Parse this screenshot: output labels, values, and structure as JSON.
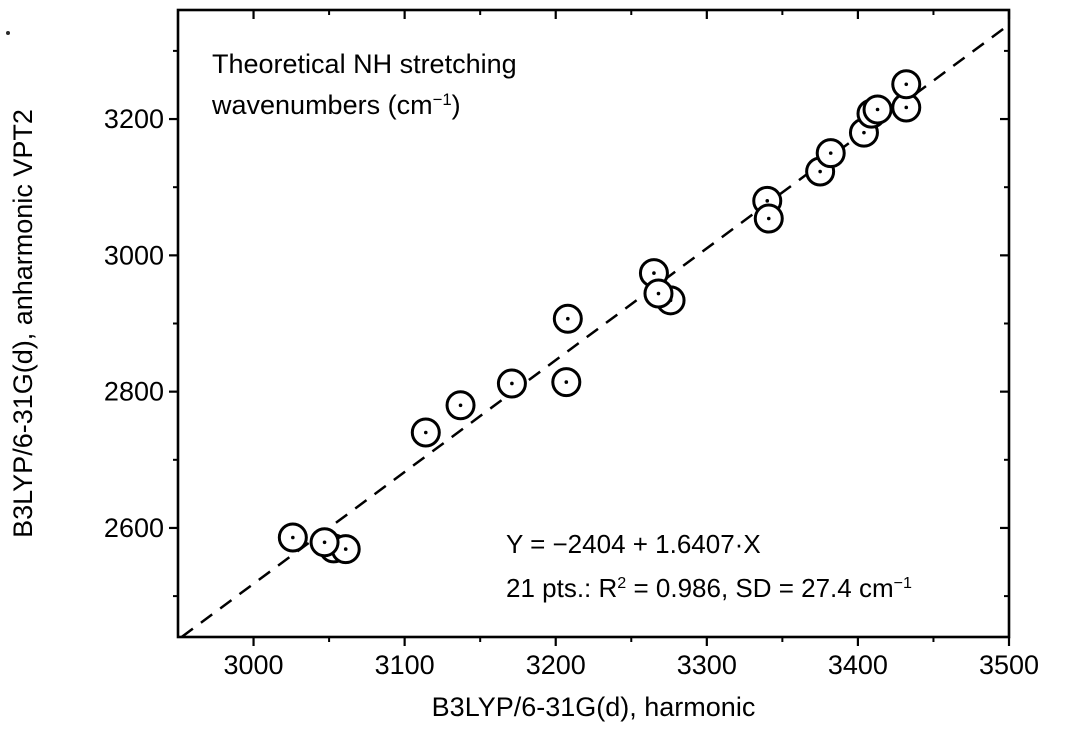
{
  "figure": {
    "background": "#ffffff",
    "ink_color": "#000000",
    "annotation_title": {
      "line1": "Theoretical NH stretching",
      "line2_pre": "wavenumbers (cm",
      "line2_sup": "−1",
      "line2_post": ")"
    },
    "fit_annotation": {
      "line1": "Y = −2404 + 1.6407·X",
      "line2_a": "21 pts.: R",
      "line2_a_sup": "2",
      "line2_b": " = 0.986, SD = 27.4 cm",
      "line2_b_sup": "−1"
    }
  },
  "chart_data": {
    "type": "scatter",
    "title": "Theoretical NH stretching wavenumbers (cm⁻¹)",
    "xlabel": "B3LYP/6-31G(d), harmonic",
    "ylabel": "B3LYP/6-31G(d), anharmonic VPT2",
    "xlim": [
      2950,
      3500
    ],
    "ylim": [
      2440,
      3360
    ],
    "x_major_ticks": [
      3000,
      3100,
      3200,
      3300,
      3400,
      3500
    ],
    "x_minor_ticks": [
      3050,
      3150,
      3250,
      3350,
      3450
    ],
    "y_major_ticks": [
      2600,
      2800,
      3000,
      3200
    ],
    "y_minor_ticks": [
      2500,
      2700,
      2900,
      3100,
      3300
    ],
    "grid": false,
    "legend": "none",
    "marker": {
      "shape": "open-circle-with-center-dot",
      "stroke": "#000000",
      "fill": "#ffffff"
    },
    "points": [
      [
        3026,
        2586
      ],
      [
        3053,
        2570
      ],
      [
        3061,
        2569
      ],
      [
        3047,
        2579
      ],
      [
        3114,
        2740
      ],
      [
        3137,
        2780
      ],
      [
        3171,
        2812
      ],
      [
        3207,
        2814
      ],
      [
        3208,
        2907
      ],
      [
        3265,
        2974
      ],
      [
        3276,
        2934
      ],
      [
        3268,
        2944
      ],
      [
        3340,
        3080
      ],
      [
        3341,
        3054
      ],
      [
        3375,
        3123
      ],
      [
        3382,
        3150
      ],
      [
        3404,
        3180
      ],
      [
        3409,
        3208
      ],
      [
        3413,
        3214
      ],
      [
        3432,
        3217
      ],
      [
        3432,
        3251
      ]
    ],
    "fit_line": {
      "style": "dashed",
      "slope": 1.6407,
      "intercept": -2404,
      "equation": "Y = −2404 + 1.6407·X",
      "n_points": 21,
      "r_squared": 0.986,
      "sd_cm-1": 27.4
    }
  }
}
